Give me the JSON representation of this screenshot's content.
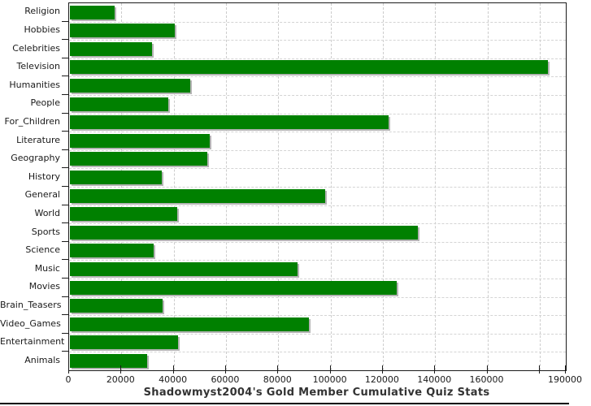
{
  "chart_data": {
    "type": "bar",
    "orientation": "horizontal",
    "title": "Shadowmyst2004's Gold Member Cumulative Quiz Stats",
    "categories": [
      "Religion",
      "Hobbies",
      "Celebrities",
      "Television",
      "Humanities",
      "People",
      "For_Children",
      "Literature",
      "Geography",
      "History",
      "General",
      "World",
      "Sports",
      "Science",
      "Music",
      "Movies",
      "Brain_Teasers",
      "Video_Games",
      "Entertainment",
      "Animals"
    ],
    "values": [
      17000,
      40000,
      31500,
      183000,
      46000,
      37500,
      122000,
      53500,
      52500,
      35000,
      97500,
      41000,
      133000,
      32000,
      87000,
      125000,
      35500,
      91500,
      41500,
      29500
    ],
    "xlabel": "",
    "ylabel": "",
    "xlim": [
      0,
      190000
    ],
    "x_tick_interval": 20000,
    "x_tick_labels": [
      "0",
      "20000",
      "40000",
      "60000",
      "80000",
      "100000",
      "120000",
      "140000",
      "160000"
    ],
    "x_axis_max_label": "190000",
    "grid": true,
    "grid_style": "dashed",
    "legend_position": "none",
    "bar_color": "#008000",
    "bar_shadow_color": "#b4b4b4",
    "gridline_color": "#cccccc",
    "axis_color": "#1a1a1a",
    "title_color": "#333333"
  }
}
